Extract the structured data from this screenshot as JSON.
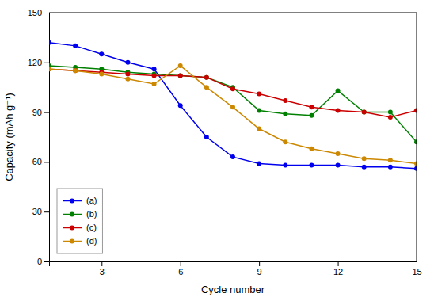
{
  "chart_data": {
    "type": "line",
    "xlabel": "Cycle number",
    "ylabel": "Capacity (mAh g⁻¹)",
    "x": [
      1,
      2,
      3,
      4,
      5,
      6,
      7,
      8,
      9,
      10,
      11,
      12,
      13,
      14,
      15
    ],
    "series": [
      {
        "name": "(a)",
        "color": "#0000EE",
        "marker": "o",
        "values": [
          132,
          130,
          125,
          120,
          116,
          94,
          75,
          63,
          59,
          58,
          58,
          58,
          57,
          57,
          56
        ]
      },
      {
        "name": "(b)",
        "color": "#008000",
        "marker": "o",
        "values": [
          118,
          117,
          116,
          114,
          113,
          112,
          111,
          105,
          91,
          89,
          88,
          103,
          90,
          90,
          72
        ]
      },
      {
        "name": "(c)",
        "color": "#CC0000",
        "marker": "o",
        "values": [
          116,
          115,
          114,
          113,
          112,
          112,
          111,
          104,
          101,
          97,
          93,
          91,
          90,
          87,
          91
        ]
      },
      {
        "name": "(d)",
        "color": "#CC8800",
        "marker": "o",
        "values": [
          116,
          115,
          113,
          110,
          107,
          118,
          105,
          93,
          80,
          72,
          68,
          65,
          62,
          61,
          59
        ]
      }
    ],
    "xlim": [
      1,
      15
    ],
    "ylim": [
      0,
      150
    ],
    "xticks": [
      3,
      6,
      9,
      12,
      15
    ],
    "yticks": [
      0,
      30,
      60,
      90,
      120,
      150
    ],
    "grid": false,
    "legend": "lower left"
  }
}
